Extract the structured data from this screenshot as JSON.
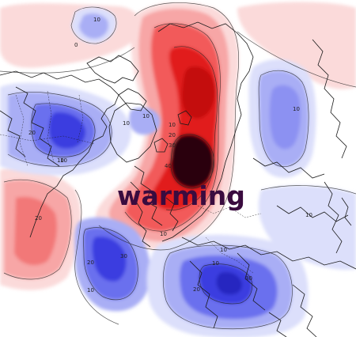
{
  "map": {
    "overlay_label": "warming",
    "colors": {
      "warm_strong": "#e11a1a",
      "warm_mid": "#f25a5a",
      "warm_light": "#f7a6a6",
      "warm_faint": "#fbdada",
      "warm_core": "#2a0508",
      "cold_strong": "#3b3ee0",
      "cold_mid": "#6a70ee",
      "cold_light": "#a9aef5",
      "cold_faint": "#dcdffb",
      "label_color": "#3a0b3f",
      "coast_color": "#1a1a1a"
    },
    "contour_labels": [
      {
        "id": "label-a",
        "text": "10"
      },
      {
        "id": "label-b",
        "text": "0"
      },
      {
        "id": "label-c",
        "text": "10"
      },
      {
        "id": "label-d",
        "text": "20"
      },
      {
        "id": "label-e",
        "text": "30"
      },
      {
        "id": "label-f",
        "text": "40"
      },
      {
        "id": "label-g",
        "text": "10"
      },
      {
        "id": "label-h",
        "text": "10"
      },
      {
        "id": "label-i",
        "text": "20"
      },
      {
        "id": "label-j",
        "text": "10"
      },
      {
        "id": "label-k",
        "text": "20"
      },
      {
        "id": "label-l",
        "text": "10"
      },
      {
        "id": "label-m",
        "text": "10"
      },
      {
        "id": "label-n",
        "text": "20"
      },
      {
        "id": "label-o",
        "text": "30"
      },
      {
        "id": "label-p",
        "text": "10"
      },
      {
        "id": "label-q",
        "text": "10"
      },
      {
        "id": "label-r",
        "text": "30"
      },
      {
        "id": "label-s",
        "text": "20"
      },
      {
        "id": "label-t",
        "text": "10"
      },
      {
        "id": "label-u",
        "text": "10"
      },
      {
        "id": "label-v",
        "text": "10"
      }
    ]
  }
}
